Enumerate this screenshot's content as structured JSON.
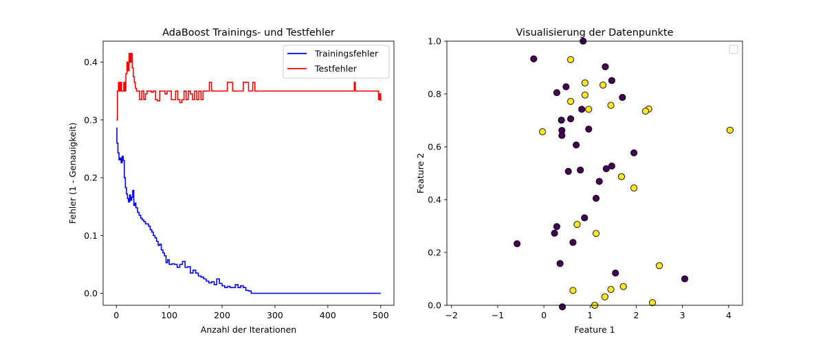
{
  "chart_data": [
    {
      "type": "line",
      "title": "AdaBoost Trainings- und Testfehler",
      "xlabel": "Anzahl der Iterationen",
      "ylabel": "Fehler (1 - Genauigkeit)",
      "xlim": [
        -25,
        525
      ],
      "ylim": [
        -0.0207,
        0.4363
      ],
      "xticks": [
        0,
        100,
        200,
        300,
        400,
        500
      ],
      "yticks": [
        0.0,
        0.1,
        0.2,
        0.3,
        0.4
      ],
      "xtick_labels": [
        "0",
        "100",
        "200",
        "300",
        "400",
        "500"
      ],
      "ytick_labels": [
        "0.0",
        "0.1",
        "0.2",
        "0.3",
        "0.4"
      ],
      "legend_position": "top-right",
      "series": [
        {
          "name": "Trainingsfehler",
          "color": "#0000ff",
          "x": [
            0,
            1,
            3,
            5,
            7,
            9,
            11,
            13,
            15,
            17,
            19,
            21,
            23,
            25,
            27,
            29,
            31,
            33,
            35,
            37,
            40,
            43,
            46,
            49,
            52,
            55,
            58,
            61,
            64,
            67,
            70,
            73,
            76,
            79,
            82,
            85,
            88,
            91,
            94,
            97,
            100,
            105,
            110,
            115,
            120,
            125,
            130,
            135,
            140,
            145,
            150,
            155,
            160,
            165,
            170,
            175,
            180,
            185,
            190,
            195,
            200,
            205,
            210,
            215,
            220,
            225,
            230,
            235,
            240,
            245,
            250,
            255,
            258,
            300,
            400,
            500
          ],
          "y": [
            0.286,
            0.26,
            0.243,
            0.231,
            0.234,
            0.226,
            0.237,
            0.23,
            0.2,
            0.183,
            0.172,
            0.164,
            0.158,
            0.17,
            0.161,
            0.166,
            0.178,
            0.152,
            0.156,
            0.148,
            0.14,
            0.135,
            0.13,
            0.127,
            0.124,
            0.12,
            0.12,
            0.116,
            0.11,
            0.106,
            0.1,
            0.096,
            0.09,
            0.083,
            0.085,
            0.075,
            0.07,
            0.065,
            0.053,
            0.058,
            0.05,
            0.051,
            0.05,
            0.045,
            0.05,
            0.055,
            0.045,
            0.046,
            0.035,
            0.04,
            0.035,
            0.03,
            0.028,
            0.025,
            0.021,
            0.018,
            0.02,
            0.015,
            0.025,
            0.017,
            0.013,
            0.01,
            0.012,
            0.01,
            0.01,
            0.015,
            0.01,
            0.013,
            0.01,
            0.005,
            0.004,
            0.0,
            0.0,
            0.0,
            0.0,
            0.0
          ]
        },
        {
          "name": "Testfehler",
          "color": "#ff0000",
          "x": [
            0,
            2,
            4,
            6,
            8,
            10,
            12,
            14,
            16,
            18,
            20,
            22,
            24,
            26,
            28,
            30,
            32,
            34,
            36,
            38,
            40,
            44,
            48,
            52,
            55,
            58,
            62,
            66,
            70,
            74,
            78,
            82,
            86,
            90,
            92,
            96,
            100,
            104,
            108,
            112,
            116,
            120,
            124,
            128,
            132,
            136,
            140,
            144,
            148,
            152,
            156,
            160,
            164,
            168,
            172,
            176,
            180,
            190,
            200,
            210,
            220,
            230,
            240,
            250,
            255,
            258,
            260,
            262,
            270,
            300,
            350,
            400,
            448,
            450,
            452,
            490,
            496,
            498,
            500
          ],
          "y": [
            0.3,
            0.35,
            0.365,
            0.35,
            0.365,
            0.35,
            0.35,
            0.365,
            0.35,
            0.38,
            0.4,
            0.385,
            0.415,
            0.4,
            0.415,
            0.39,
            0.375,
            0.365,
            0.355,
            0.35,
            0.35,
            0.335,
            0.35,
            0.335,
            0.345,
            0.35,
            0.35,
            0.348,
            0.35,
            0.335,
            0.333,
            0.35,
            0.35,
            0.35,
            0.345,
            0.35,
            0.35,
            0.335,
            0.335,
            0.35,
            0.335,
            0.33,
            0.335,
            0.35,
            0.335,
            0.35,
            0.345,
            0.335,
            0.35,
            0.335,
            0.35,
            0.335,
            0.35,
            0.35,
            0.35,
            0.365,
            0.35,
            0.35,
            0.35,
            0.365,
            0.35,
            0.35,
            0.365,
            0.35,
            0.35,
            0.365,
            0.365,
            0.35,
            0.35,
            0.35,
            0.35,
            0.35,
            0.35,
            0.365,
            0.35,
            0.35,
            0.335,
            0.345,
            0.333
          ]
        }
      ]
    },
    {
      "type": "scatter",
      "title": "Visualisierung der Datenpunkte",
      "xlabel": "Feature 1",
      "ylabel": "Feature 2",
      "xlim": [
        -2.1,
        4.3
      ],
      "ylim": [
        0.0,
        1.0
      ],
      "xticks": [
        -2,
        -1,
        0,
        1,
        2,
        3,
        4
      ],
      "yticks": [
        0.0,
        0.2,
        0.4,
        0.6,
        0.8,
        1.0
      ],
      "xtick_labels": [
        "−2",
        "−1",
        "0",
        "1",
        "2",
        "3",
        "4"
      ],
      "ytick_labels": [
        "0.0",
        "0.2",
        "0.4",
        "0.6",
        "0.8",
        "1.0"
      ],
      "legend_position": "top-right",
      "legend_empty": true,
      "class_colors": {
        "purple": "#440154",
        "yellow": "#fde725"
      },
      "points": [
        {
          "x": -0.22,
          "y": 0.933,
          "c": "purple"
        },
        {
          "x": 0.85,
          "y": 1.0,
          "c": "purple"
        },
        {
          "x": 1.33,
          "y": 0.903,
          "c": "purple"
        },
        {
          "x": 0.58,
          "y": 0.93,
          "c": "yellow"
        },
        {
          "x": 0.89,
          "y": 0.842,
          "c": "yellow"
        },
        {
          "x": 1.47,
          "y": 0.851,
          "c": "purple"
        },
        {
          "x": 0.48,
          "y": 0.827,
          "c": "purple"
        },
        {
          "x": 1.28,
          "y": 0.834,
          "c": "yellow"
        },
        {
          "x": 0.28,
          "y": 0.805,
          "c": "purple"
        },
        {
          "x": 0.89,
          "y": 0.796,
          "c": "yellow"
        },
        {
          "x": 1.7,
          "y": 0.787,
          "c": "purple"
        },
        {
          "x": 0.58,
          "y": 0.772,
          "c": "yellow"
        },
        {
          "x": 1.45,
          "y": 0.757,
          "c": "yellow"
        },
        {
          "x": 0.82,
          "y": 0.742,
          "c": "purple"
        },
        {
          "x": 0.97,
          "y": 0.742,
          "c": "yellow"
        },
        {
          "x": 2.27,
          "y": 0.743,
          "c": "yellow"
        },
        {
          "x": 2.2,
          "y": 0.735,
          "c": "yellow"
        },
        {
          "x": 0.58,
          "y": 0.706,
          "c": "purple"
        },
        {
          "x": 0.38,
          "y": 0.701,
          "c": "purple"
        },
        {
          "x": 0.97,
          "y": 0.667,
          "c": "purple"
        },
        {
          "x": 0.39,
          "y": 0.662,
          "c": "purple"
        },
        {
          "x": -0.03,
          "y": 0.657,
          "c": "yellow"
        },
        {
          "x": 4.03,
          "y": 0.663,
          "c": "yellow"
        },
        {
          "x": 0.39,
          "y": 0.643,
          "c": "purple"
        },
        {
          "x": 0.7,
          "y": 0.607,
          "c": "purple"
        },
        {
          "x": 1.95,
          "y": 0.577,
          "c": "purple"
        },
        {
          "x": 1.47,
          "y": 0.527,
          "c": "purple"
        },
        {
          "x": 1.35,
          "y": 0.517,
          "c": "purple"
        },
        {
          "x": 0.79,
          "y": 0.512,
          "c": "purple"
        },
        {
          "x": 0.53,
          "y": 0.507,
          "c": "purple"
        },
        {
          "x": 1.68,
          "y": 0.487,
          "c": "yellow"
        },
        {
          "x": 1.2,
          "y": 0.469,
          "c": "purple"
        },
        {
          "x": 1.95,
          "y": 0.444,
          "c": "yellow"
        },
        {
          "x": 1.13,
          "y": 0.405,
          "c": "purple"
        },
        {
          "x": 0.88,
          "y": 0.331,
          "c": "purple"
        },
        {
          "x": 0.72,
          "y": 0.306,
          "c": "yellow"
        },
        {
          "x": 0.28,
          "y": 0.298,
          "c": "purple"
        },
        {
          "x": 0.23,
          "y": 0.273,
          "c": "purple"
        },
        {
          "x": 1.13,
          "y": 0.272,
          "c": "yellow"
        },
        {
          "x": 0.63,
          "y": 0.238,
          "c": "purple"
        },
        {
          "x": -0.58,
          "y": 0.233,
          "c": "purple"
        },
        {
          "x": 0.35,
          "y": 0.158,
          "c": "purple"
        },
        {
          "x": 2.5,
          "y": 0.15,
          "c": "yellow"
        },
        {
          "x": 1.55,
          "y": 0.122,
          "c": "purple"
        },
        {
          "x": 3.05,
          "y": 0.1,
          "c": "purple"
        },
        {
          "x": 1.72,
          "y": 0.071,
          "c": "yellow"
        },
        {
          "x": 1.45,
          "y": 0.06,
          "c": "yellow"
        },
        {
          "x": 0.63,
          "y": 0.056,
          "c": "yellow"
        },
        {
          "x": 1.32,
          "y": 0.032,
          "c": "yellow"
        },
        {
          "x": 2.35,
          "y": 0.01,
          "c": "yellow"
        },
        {
          "x": 1.1,
          "y": 0.0,
          "c": "yellow"
        },
        {
          "x": 0.4,
          "y": -0.006,
          "c": "purple"
        }
      ]
    }
  ]
}
